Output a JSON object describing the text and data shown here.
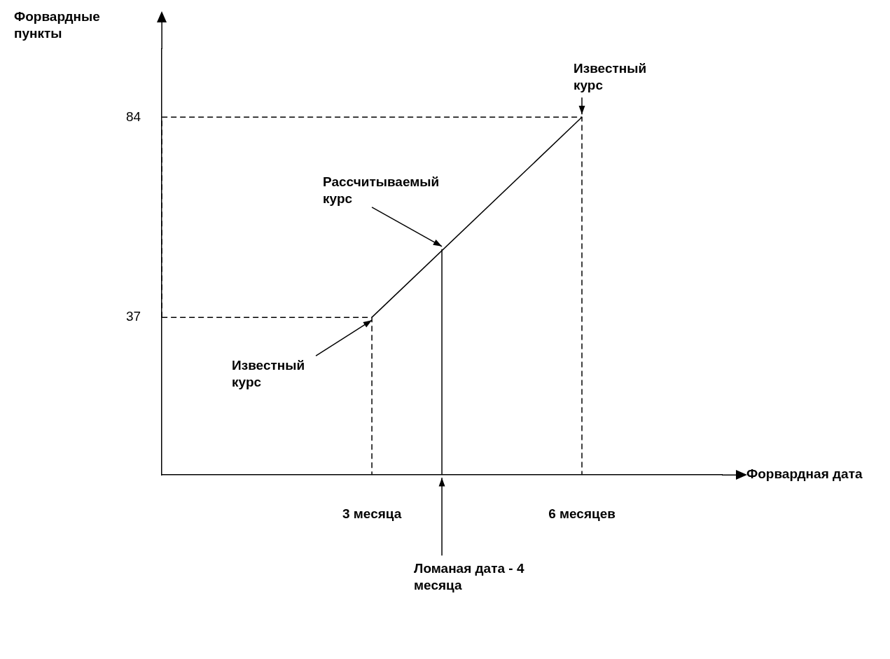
{
  "chart_data": {
    "type": "line",
    "xlabel": "Форвардная дата",
    "ylabel": "Форвардные пункты",
    "xlim": [
      0,
      8
    ],
    "ylim": [
      0,
      100
    ],
    "xticks": [
      {
        "value": 3,
        "label": "3 месяца"
      },
      {
        "value": 6,
        "label": "6 месяцев"
      }
    ],
    "yticks": [
      37,
      84
    ],
    "grid": false,
    "legend": false,
    "marker": "none",
    "series": [
      {
        "color": "#000000",
        "x": [
          3,
          6
        ],
        "values": [
          37,
          84
        ],
        "line_style": "solid"
      },
      {
        "color": "#000000",
        "x": [
          0,
          6,
          6
        ],
        "values": [
          84,
          84,
          0
        ],
        "line_style": "dashed"
      },
      {
        "color": "#000000",
        "x": [
          0,
          3,
          3
        ],
        "values": [
          37,
          37,
          0
        ],
        "line_style": "dashed"
      },
      {
        "color": "#000000",
        "x": [
          0,
          0
        ],
        "values": [
          37,
          84
        ],
        "line_style": "dashed"
      },
      {
        "color": "#000000",
        "x": [
          4,
          4
        ],
        "values": [
          0,
          53
        ],
        "line_style": "solid"
      }
    ],
    "annotations": [
      {
        "text": "Известный курс",
        "x": 6,
        "y": 84
      },
      {
        "text": "Рассчитываемый курс",
        "x": 4,
        "y": 53
      },
      {
        "text": "Известный курс",
        "x": 3,
        "y": 37
      },
      {
        "text": "Ломаная дата - 4 месяца",
        "x": 4,
        "y": 0
      }
    ]
  }
}
